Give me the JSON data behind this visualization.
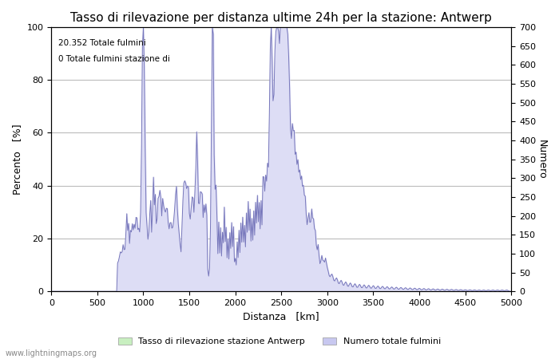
{
  "title": "Tasso di rilevazione per distanza ultime 24h per la stazione: Antwerp",
  "xlabel": "Distanza   [km]",
  "ylabel_left": "Percento   [%]",
  "ylabel_right": "Numero",
  "annotation_line1": "20.352 Totale fulmini",
  "annotation_line2": "0 Totale fulmini stazione di",
  "legend_label1": "Tasso di rilevazione stazione Antwerp",
  "legend_label2": "Numero totale fulmini",
  "legend_color1": "#c8efc0",
  "legend_color2": "#c8c8f0",
  "watermark": "www.lightningmaps.org",
  "xlim": [
    0,
    5000
  ],
  "ylim_left": [
    0,
    100
  ],
  "ylim_right": [
    0,
    700
  ],
  "line_color": "#7777bb",
  "fill_color": "#ddddf5",
  "background_color": "#ffffff",
  "grid_color": "#bbbbbb",
  "title_fontsize": 11,
  "label_fontsize": 9,
  "tick_fontsize": 8
}
